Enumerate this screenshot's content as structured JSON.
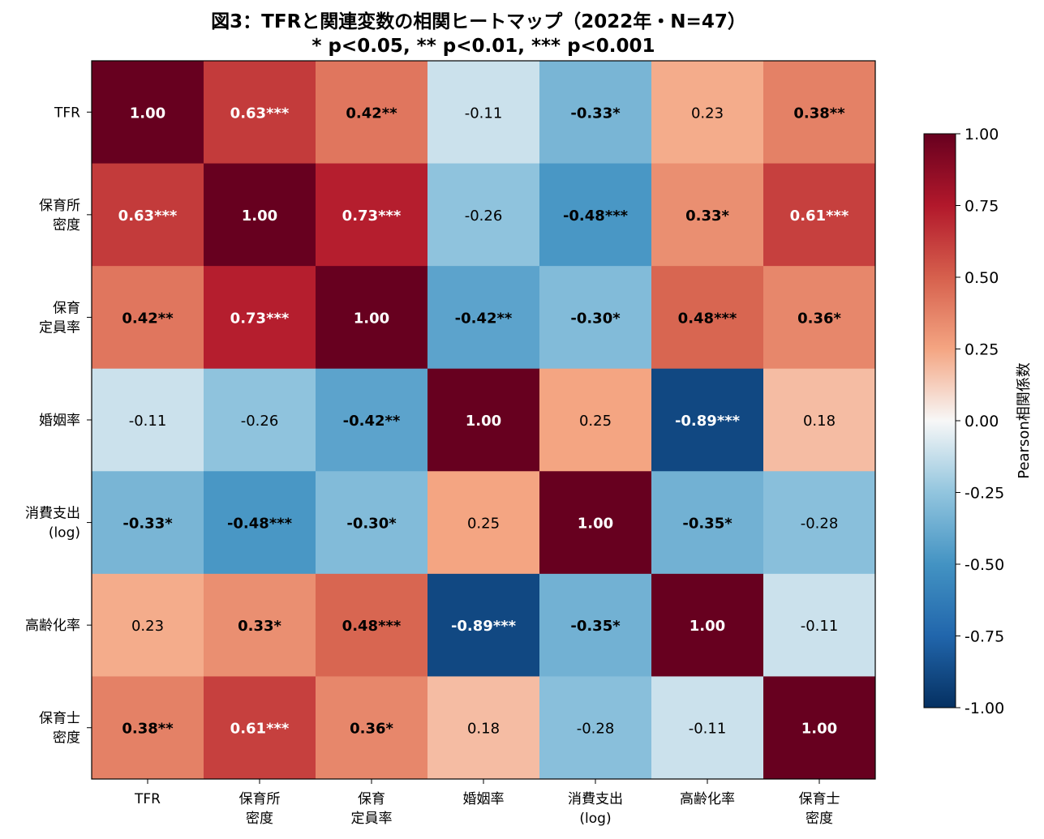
{
  "chart_data": {
    "type": "heatmap",
    "title": "図3：TFRと関連変数の相関ヒートマップ（2022年・N=47）",
    "subtitle": "* p<0.05, ** p<0.01, *** p<0.001",
    "labels": [
      [
        "TFR"
      ],
      [
        "保育所",
        "密度"
      ],
      [
        "保育",
        "定員率"
      ],
      [
        "婚姻率"
      ],
      [
        "消費支出",
        "(log)"
      ],
      [
        "高齢化率"
      ],
      [
        "保育士",
        "密度"
      ]
    ],
    "values": [
      [
        1.0,
        0.63,
        0.42,
        -0.11,
        -0.33,
        0.23,
        0.38
      ],
      [
        0.63,
        1.0,
        0.73,
        -0.26,
        -0.48,
        0.33,
        0.61
      ],
      [
        0.42,
        0.73,
        1.0,
        -0.42,
        -0.3,
        0.48,
        0.36
      ],
      [
        -0.11,
        -0.26,
        -0.42,
        1.0,
        0.25,
        -0.89,
        0.18
      ],
      [
        -0.33,
        -0.48,
        -0.3,
        0.25,
        1.0,
        -0.35,
        -0.28
      ],
      [
        0.23,
        0.33,
        0.48,
        -0.89,
        -0.35,
        1.0,
        -0.11
      ],
      [
        0.38,
        0.61,
        0.36,
        0.18,
        -0.28,
        -0.11,
        1.0
      ]
    ],
    "annotations": [
      [
        "1.00",
        "0.63***",
        "0.42**",
        "-0.11",
        "-0.33*",
        "0.23",
        "0.38**"
      ],
      [
        "0.63***",
        "1.00",
        "0.73***",
        "-0.26",
        "-0.48***",
        "0.33*",
        "0.61***"
      ],
      [
        "0.42**",
        "0.73***",
        "1.00",
        "-0.42**",
        "-0.30*",
        "0.48***",
        "0.36*"
      ],
      [
        "-0.11",
        "-0.26",
        "-0.42**",
        "1.00",
        "0.25",
        "-0.89***",
        "0.18"
      ],
      [
        "-0.33*",
        "-0.48***",
        "-0.30*",
        "0.25",
        "1.00",
        "-0.35*",
        "-0.28"
      ],
      [
        "0.23",
        "0.33*",
        "0.48***",
        "-0.89***",
        "-0.35*",
        "1.00",
        "-0.11"
      ],
      [
        "0.38**",
        "0.61***",
        "0.36*",
        "0.18",
        "-0.28",
        "-0.11",
        "1.00"
      ]
    ],
    "colorbar": {
      "label": "Pearson相関係数",
      "range": [
        -1.0,
        1.0
      ],
      "ticks": [
        "1.00",
        "0.75",
        "0.50",
        "0.25",
        "0.00",
        "-0.25",
        "-0.50",
        "-0.75",
        "-1.00"
      ],
      "colormap": "RdBu_r"
    }
  }
}
